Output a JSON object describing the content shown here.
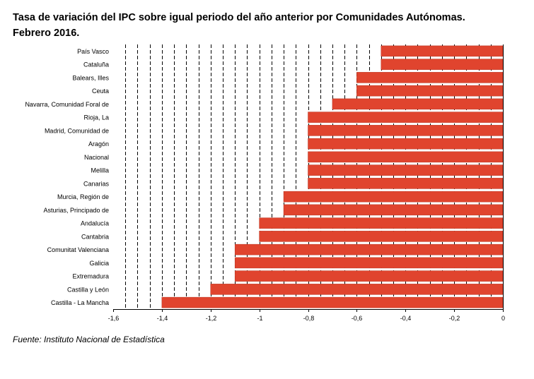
{
  "title_line1": "Tasa de variación del IPC sobre igual periodo del año anterior por Comunidades Autónomas.",
  "title_line2": "Febrero 2016.",
  "source": "Fuente: Instituto Nacional de Estadística",
  "colors": {
    "bar": "#e0442e",
    "grid": "#000000"
  },
  "chart_data": {
    "type": "bar",
    "orientation": "horizontal",
    "categories": [
      "País Vasco",
      "Cataluña",
      "Balears, Illes",
      "Ceuta",
      "Navarra, Comunidad Foral de",
      "Rioja, La",
      "Madrid, Comunidad de",
      "Aragón",
      "Nacional",
      "Melilla",
      "Canarias",
      "Murcia, Región de",
      "Asturias, Principado de",
      "Andalucía",
      "Cantabria",
      "Comunitat Valenciana",
      "Galicia",
      "Extremadura",
      "Castilla y León",
      "Castilla - La Mancha"
    ],
    "values": [
      -0.5,
      -0.5,
      -0.6,
      -0.6,
      -0.7,
      -0.8,
      -0.8,
      -0.8,
      -0.8,
      -0.8,
      -0.8,
      -0.9,
      -0.9,
      -1.0,
      -1.0,
      -1.1,
      -1.1,
      -1.1,
      -1.2,
      -1.4
    ],
    "xlim": [
      -1.6,
      0
    ],
    "xticks": [
      -1.6,
      -1.4,
      -1.2,
      -1,
      -0.8,
      -0.6,
      -0.4,
      -0.2,
      0
    ],
    "xtick_labels": [
      "-1,6",
      "-1,4",
      "-1,2",
      "-1",
      "-0,8",
      "-0,6",
      "-0,4",
      "-0,2",
      "0"
    ],
    "grid": "vertical dashed",
    "legend": "none"
  }
}
